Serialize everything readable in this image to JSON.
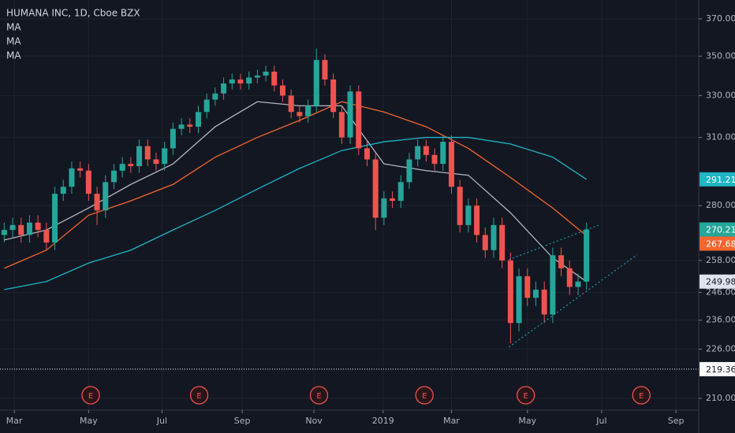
{
  "chart_data": {
    "type": "candlestick",
    "title": "HUMANA INC, 1D, Cboe BZX",
    "log_scale": true,
    "grid": true,
    "up_color": "#26a69a",
    "down_color": "#ef5350",
    "ylim": [
      210,
      370
    ],
    "yticks": [
      {
        "value": 210,
        "label": "210.00"
      },
      {
        "value": 226,
        "label": "226.00"
      },
      {
        "value": 236,
        "label": "236.00"
      },
      {
        "value": 246,
        "label": "246.00"
      },
      {
        "value": 258,
        "label": "258.00"
      },
      {
        "value": 280,
        "label": "280.00"
      },
      {
        "value": 310,
        "label": "310.00"
      },
      {
        "value": 330,
        "label": "330.00"
      },
      {
        "value": 350,
        "label": "350.00"
      },
      {
        "value": 370,
        "label": "370.00"
      }
    ],
    "xlim": [
      -0.5,
      82.3
    ],
    "xticks": [
      {
        "value": 1.2,
        "label": "Mar"
      },
      {
        "value": 10,
        "label": "May"
      },
      {
        "value": 18.7,
        "label": "Jul"
      },
      {
        "value": 28.2,
        "label": "Sep"
      },
      {
        "value": 36.7,
        "label": "Nov"
      },
      {
        "value": 44.9,
        "label": "2019"
      },
      {
        "value": 53,
        "label": "Mar"
      },
      {
        "value": 62,
        "label": "May"
      },
      {
        "value": 70.8,
        "label": "Jul"
      },
      {
        "value": 79.6,
        "label": "Sep"
      }
    ],
    "x": [
      0,
      1,
      2,
      3,
      4,
      5,
      6,
      7,
      8,
      9,
      10,
      11,
      12,
      13,
      14,
      15,
      16,
      17,
      18,
      19,
      20,
      21,
      22,
      23,
      24,
      25,
      26,
      27,
      28,
      29,
      30,
      31,
      32,
      33,
      34,
      35,
      36,
      37,
      38,
      39,
      40,
      41,
      42,
      43,
      44,
      45,
      46,
      47,
      48,
      49,
      50,
      51,
      52,
      53,
      54,
      55,
      56,
      57,
      58,
      59,
      60,
      61,
      62,
      63,
      64,
      65,
      66,
      67,
      68,
      69
    ],
    "open": [
      268,
      270,
      272,
      268,
      273,
      270,
      265,
      285,
      288,
      296,
      295,
      285,
      278,
      290,
      295,
      298,
      297,
      306,
      300,
      298,
      305,
      314,
      316,
      315,
      322,
      328,
      331,
      336,
      338,
      336,
      339,
      340,
      342,
      335,
      330,
      322,
      320,
      325,
      348,
      338,
      322,
      310,
      332,
      305,
      300,
      275,
      283,
      282,
      290,
      300,
      306,
      302,
      298,
      308,
      288,
      272,
      280,
      268,
      262,
      272,
      258,
      235,
      252,
      244,
      247,
      238,
      260,
      255,
      248,
      250
    ],
    "high": [
      273,
      275,
      275,
      276,
      276,
      273,
      288,
      291,
      299,
      299,
      298,
      288,
      293,
      298,
      301,
      301,
      309,
      309,
      303,
      308,
      317,
      319,
      319,
      325,
      331,
      334,
      339,
      341,
      341,
      342,
      343,
      345,
      345,
      338,
      333,
      325,
      328,
      354,
      351,
      341,
      325,
      335,
      335,
      308,
      303,
      286,
      286,
      293,
      303,
      309,
      309,
      305,
      311,
      311,
      291,
      283,
      283,
      271,
      275,
      275,
      261,
      255,
      255,
      250,
      250,
      263,
      263,
      258,
      253,
      273
    ],
    "low": [
      265,
      267,
      265,
      265,
      267,
      262,
      262,
      282,
      285,
      292,
      282,
      272,
      275,
      287,
      292,
      294,
      294,
      297,
      295,
      295,
      302,
      311,
      312,
      312,
      319,
      325,
      328,
      333,
      333,
      333,
      336,
      337,
      332,
      327,
      319,
      317,
      317,
      322,
      335,
      319,
      307,
      307,
      302,
      297,
      270,
      272,
      279,
      279,
      287,
      297,
      299,
      295,
      295,
      285,
      269,
      269,
      265,
      259,
      259,
      255,
      228,
      232,
      241,
      241,
      235,
      235,
      252,
      245,
      245,
      247
    ],
    "close": [
      270,
      272,
      268,
      273,
      270,
      265,
      285,
      288,
      296,
      295,
      285,
      278,
      290,
      295,
      298,
      297,
      306,
      300,
      298,
      305,
      314,
      316,
      315,
      322,
      328,
      331,
      336,
      338,
      336,
      339,
      340,
      342,
      335,
      330,
      322,
      320,
      325,
      348,
      338,
      322,
      310,
      332,
      305,
      300,
      275,
      283,
      282,
      290,
      300,
      306,
      302,
      298,
      308,
      288,
      272,
      280,
      268,
      262,
      272,
      258,
      235,
      252,
      244,
      247,
      238,
      260,
      255,
      248,
      250,
      270.21
    ],
    "ma_x": [
      0,
      5,
      10,
      15,
      20,
      25,
      30,
      35,
      40,
      45,
      50,
      55,
      60,
      65,
      69
    ],
    "ma": [
      {
        "name": "MA",
        "color": "#b2b5be",
        "values": [
          266,
          270,
          279,
          289,
          298,
          315,
          327,
          325,
          325,
          298,
          295,
          293,
          277,
          259,
          249.98
        ]
      },
      {
        "name": "MA",
        "color": "#f4662f",
        "values": [
          255,
          262,
          276,
          282,
          289,
          301,
          310,
          318,
          327,
          322,
          315,
          305,
          292,
          279,
          267.68
        ]
      },
      {
        "name": "MA",
        "color": "#1fb5c4",
        "values": [
          247,
          250,
          257,
          262,
          270,
          278,
          287,
          296,
          304,
          308,
          310,
          310,
          307,
          301,
          291.21
        ]
      }
    ],
    "hline": {
      "value": 219.36,
      "color": "#ffffff"
    },
    "trendlines": {
      "color": "#1fb5c4",
      "lines": [
        {
          "x": [
            59.8,
            70.7
          ],
          "y": [
            258.3,
            272.3
          ]
        },
        {
          "x": [
            59.8,
            75.0
          ],
          "y": [
            226.7,
            260.2
          ]
        }
      ]
    },
    "events": {
      "label": "E",
      "color": "#ef5350",
      "x": [
        10.25,
        23.1,
        37.3,
        49.8,
        61.8,
        75.5
      ]
    }
  }
}
